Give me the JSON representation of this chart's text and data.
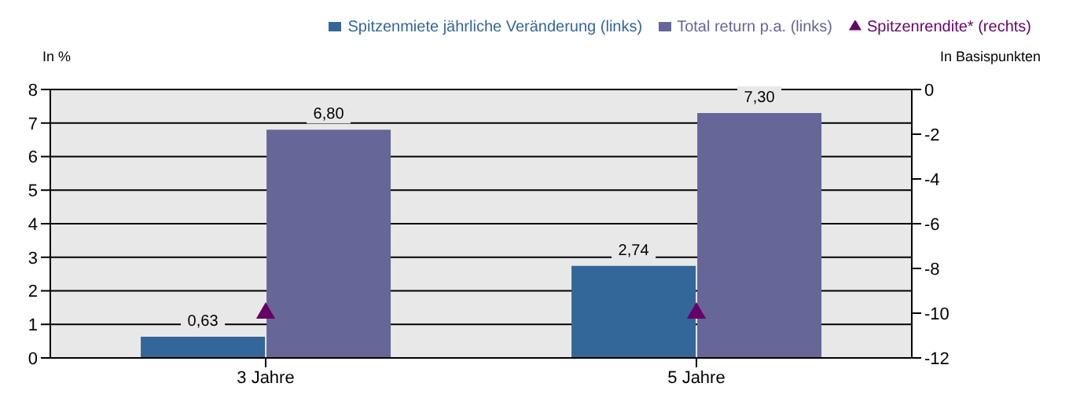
{
  "chart_data": {
    "type": "bar",
    "categories": [
      "3 Jahre",
      "5 Jahre"
    ],
    "ylabel": "In %",
    "y2label": "In Basispunkten",
    "series": [
      {
        "name": "Spitzenmiete jährliche Veränderung (links)",
        "color": "#336699",
        "values": [
          0.63,
          2.74
        ],
        "value_labels": [
          "0,63",
          "2,74"
        ]
      },
      {
        "name": "Total return p.a. (links)",
        "color": "#666699",
        "values": [
          6.8,
          7.3
        ],
        "value_labels": [
          "6,80",
          "7,30"
        ]
      },
      {
        "name": "Spitzenrendite* (rechts)",
        "type": "scatter",
        "axis": "y2",
        "marker": "triangle",
        "color": "#660066",
        "values": [
          -10,
          -10
        ]
      }
    ],
    "ylim": [
      0,
      8
    ],
    "yticks": [
      0,
      1,
      2,
      3,
      4,
      5,
      6,
      7,
      8
    ],
    "y2lim": [
      -12,
      0
    ],
    "y2ticks": [
      -12,
      -10,
      -8,
      -6,
      -4,
      -2,
      0
    ],
    "grid": "y",
    "legend": "top right"
  }
}
